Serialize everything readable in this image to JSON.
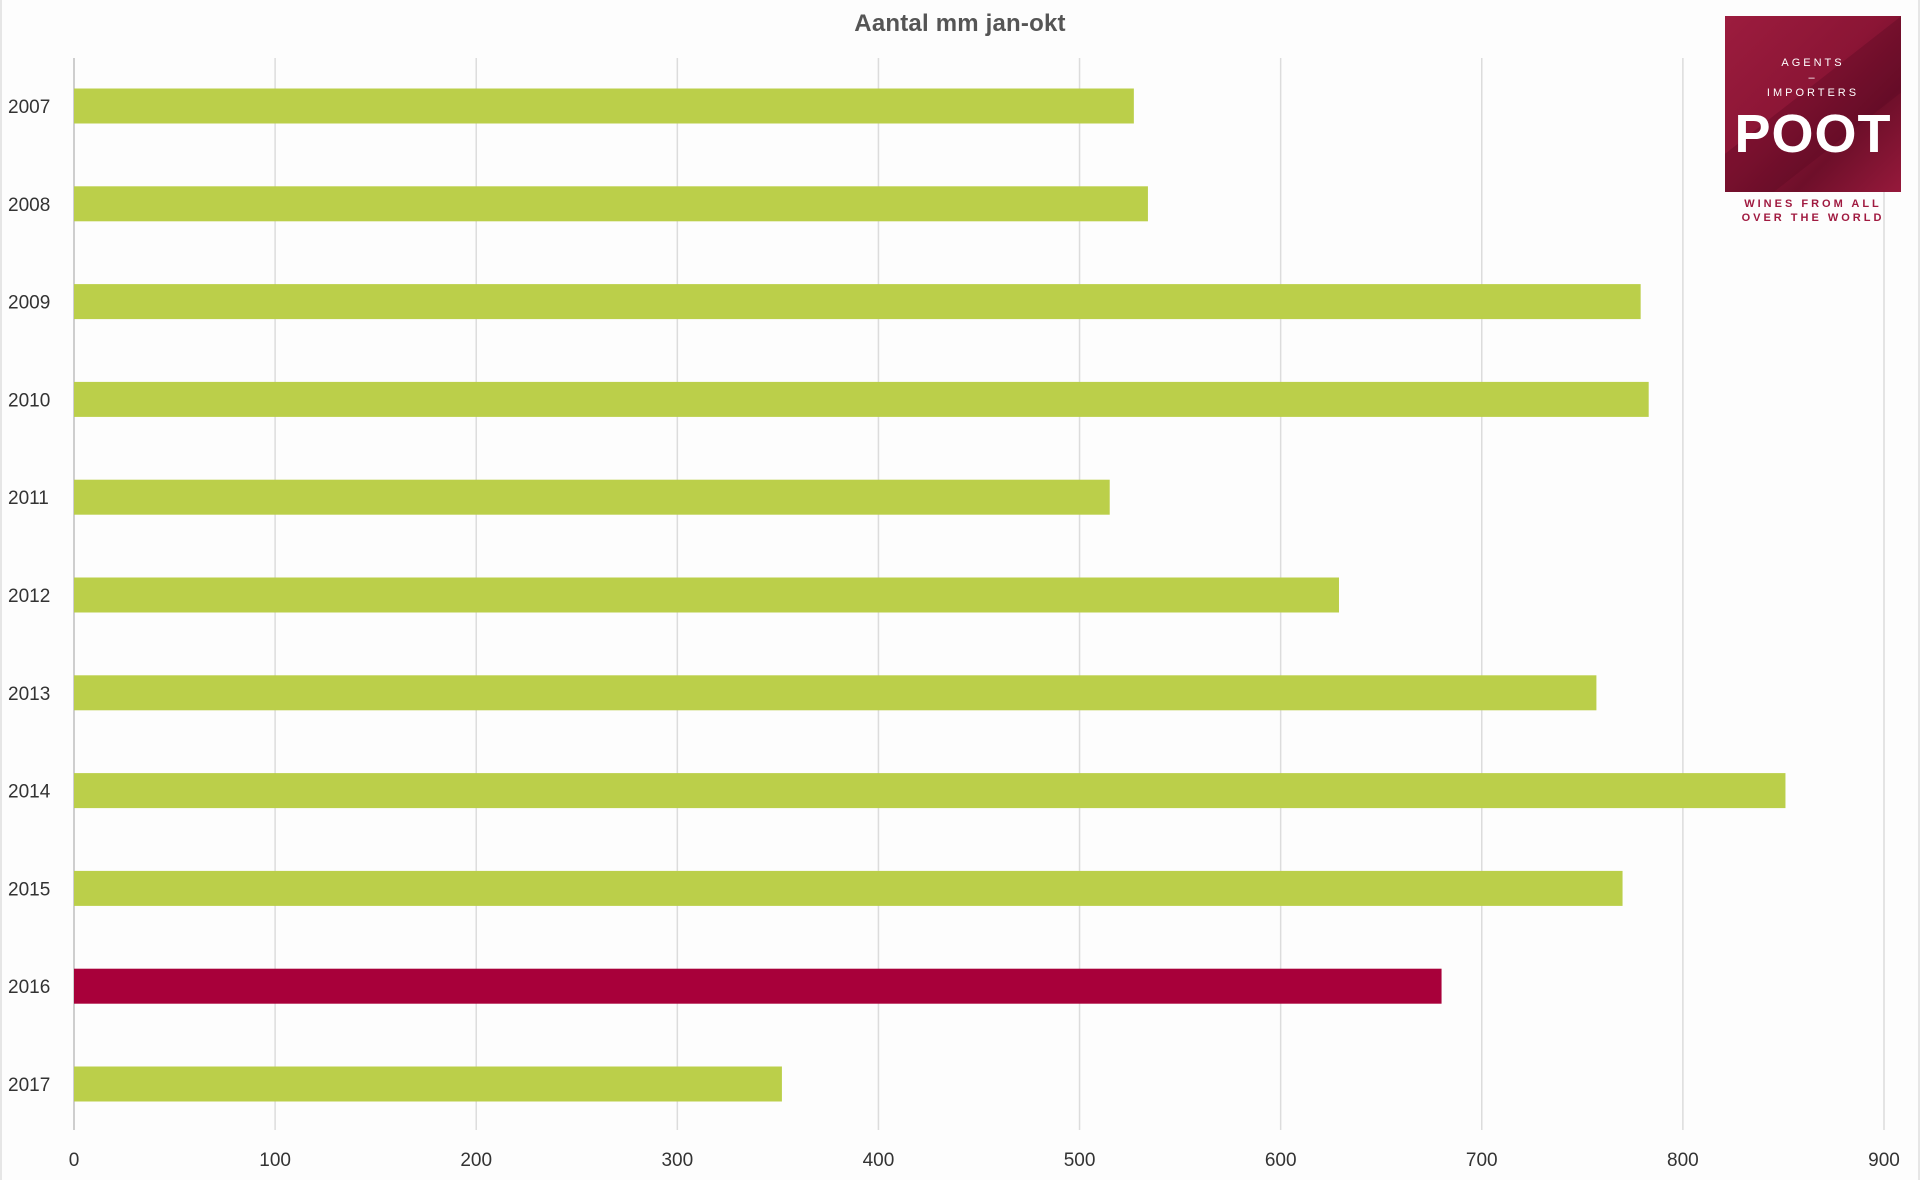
{
  "chart_data": {
    "type": "bar",
    "orientation": "horizontal",
    "title": "Aantal mm jan-okt",
    "xlabel": "",
    "ylabel": "",
    "categories": [
      "2007",
      "2008",
      "2009",
      "2010",
      "2011",
      "2012",
      "2013",
      "2014",
      "2015",
      "2016",
      "2017"
    ],
    "values": [
      527,
      534,
      779,
      783,
      515,
      629,
      757,
      851,
      770,
      680,
      352
    ],
    "xlim": [
      0,
      900
    ],
    "xticks": [
      0,
      100,
      200,
      300,
      400,
      500,
      600,
      700,
      800,
      900
    ],
    "grid": "vertical",
    "legend": "none",
    "highlight_category": "2016",
    "colors": {
      "bar": "#bbcf4a",
      "highlight": "#a8003a",
      "grid": "#dcdcdc",
      "axis": "#bfbfbf"
    }
  },
  "logo": {
    "line1": "AGENTS",
    "line2": "–",
    "line3": "IMPORTERS",
    "brand": "POOT",
    "tagline1": "WINES FROM ALL",
    "tagline2": "OVER THE WORLD",
    "color": "#9c1c3e"
  }
}
